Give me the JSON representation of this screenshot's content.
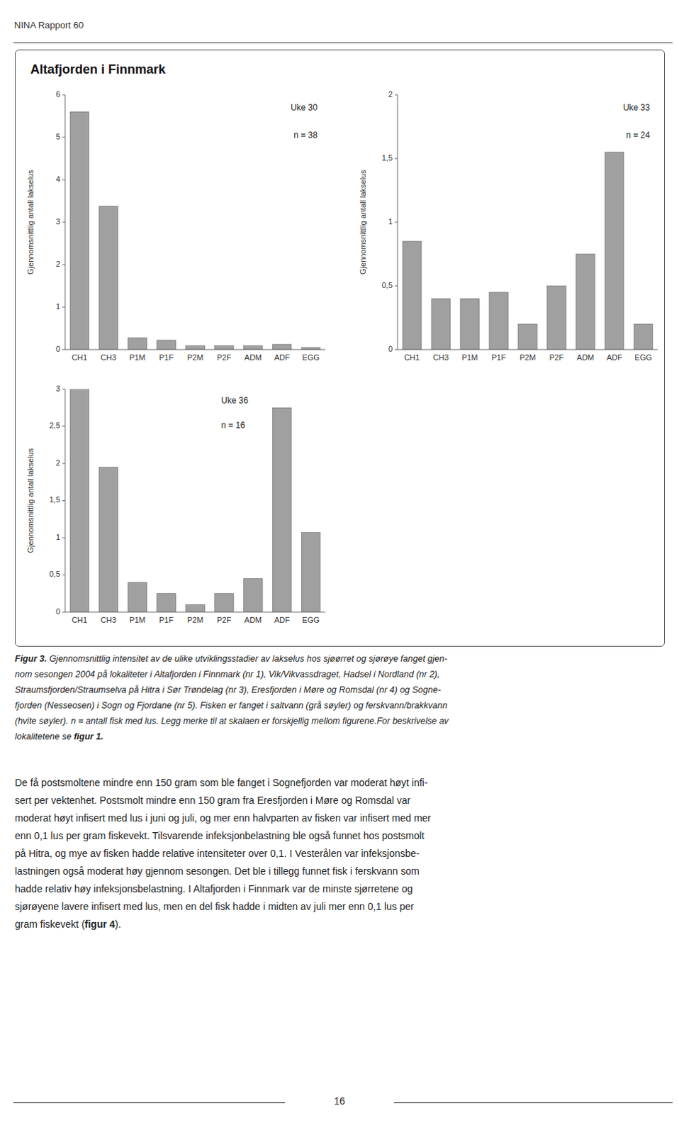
{
  "header": "NINA Rapport 60",
  "title": "Altafjorden i Finnmark",
  "chart_data": [
    {
      "type": "bar",
      "categories": [
        "CH1",
        "CH3",
        "P1M",
        "P1F",
        "P2M",
        "P2F",
        "ADM",
        "ADF",
        "EGG"
      ],
      "values": [
        5.6,
        3.38,
        0.28,
        0.22,
        0.09,
        0.09,
        0.09,
        0.12,
        0.05
      ],
      "color": "#a0a0a0",
      "ylabel": "Gjennomsnittlig antall lakselus",
      "ylim": [
        0,
        6
      ],
      "yticks": [
        0,
        1,
        2,
        3,
        4,
        5,
        6
      ],
      "annotations": [
        "Uke 30",
        "n = 38"
      ]
    },
    {
      "type": "bar",
      "categories": [
        "CH1",
        "CH3",
        "P1M",
        "P1F",
        "P2M",
        "P2F",
        "ADM",
        "ADF",
        "EGG"
      ],
      "values": [
        0.85,
        0.4,
        0.4,
        0.45,
        0.2,
        0.5,
        0.75,
        1.55,
        0.2
      ],
      "color": "#a0a0a0",
      "ylabel": "Gjennomsnittlig antall lakselus",
      "ylim": [
        0,
        2
      ],
      "yticks": [
        0,
        {
          "value": 0.5,
          "label": "0,5"
        },
        1,
        {
          "value": 1.5,
          "label": "1,5"
        },
        2
      ],
      "annotations": [
        "Uke 33",
        "n = 24"
      ]
    },
    {
      "type": "bar",
      "categories": [
        "CH1",
        "CH3",
        "P1M",
        "P1F",
        "P2M",
        "P2F",
        "ADM",
        "ADF",
        "EGG"
      ],
      "values": [
        3.0,
        1.95,
        0.4,
        0.25,
        0.1,
        0.25,
        0.45,
        2.75,
        1.07
      ],
      "color": "#a0a0a0",
      "ylabel": "Gjennomsnittlig antall lakselus",
      "ylim": [
        0,
        3
      ],
      "yticks": [
        0,
        {
          "value": 0.5,
          "label": "0,5"
        },
        1,
        {
          "value": 1.5,
          "label": "1,5"
        },
        2,
        {
          "value": 2.5,
          "label": "2,5"
        },
        3
      ],
      "annotations": [
        "Uke 36",
        "n = 16"
      ]
    }
  ],
  "caption": {
    "lead": "Figur 3.",
    "lines": [
      " Gjennomsnittlig intensitet av de ulike utviklingsstadier av lakselus hos sjøørret og sjørøye fanget gjen-",
      "nom sesongen 2004 på lokaliteter i Altafjorden i Finnmark (nr 1), Vik/Vikvassdraget, Hadsel i Nordland (nr 2),",
      "Straumsfjorden/Straumselva på Hitra i Sør Trøndelag (nr 3), Eresfjorden i Møre og Romsdal (nr 4) og Sogne-",
      "fjorden (Nesseosen) i Sogn og Fjordane (nr 5). Fisken er fanget i saltvann (grå søyler) og ferskvann/brakkvann",
      "(hvite søyler). n = antall fisk med lus. Legg merke til at skalaen er forskjellig mellom figurene.For beskrivelse av",
      "lokalitetene se "
    ],
    "reference": "figur 1."
  },
  "paragraph": {
    "lines": [
      "De få postsmoltene mindre enn 150 gram som ble fanget i Sognefjorden var moderat høyt infi-",
      "sert per vektenhet. Postsmolt mindre enn 150 gram fra Eresfjorden i Møre og Romsdal var",
      "moderat høyt infisert med lus i juni og juli, og mer enn halvparten av fisken var infisert med mer",
      "enn 0,1 lus per gram fiskevekt. Tilsvarende infeksjonbelastning ble også funnet hos postsmolt",
      "på Hitra, og mye av fisken hadde relative intensiteter over 0,1. I Vesterålen var infeksjonsbe-",
      "lastningen også moderat høy gjennom sesongen. Det ble i tillegg funnet fisk i ferskvann som",
      "hadde relativ høy infeksjonsbelastning. I Altafjorden i Finnmark var de minste sjørretene og",
      "sjørøyene lavere infisert med lus, men en del fisk hadde i midten av juli mer enn 0,1 lus per",
      "gram fiskevekt ("
    ],
    "reference": "figur 4",
    "end": ")."
  },
  "page_number": "16"
}
